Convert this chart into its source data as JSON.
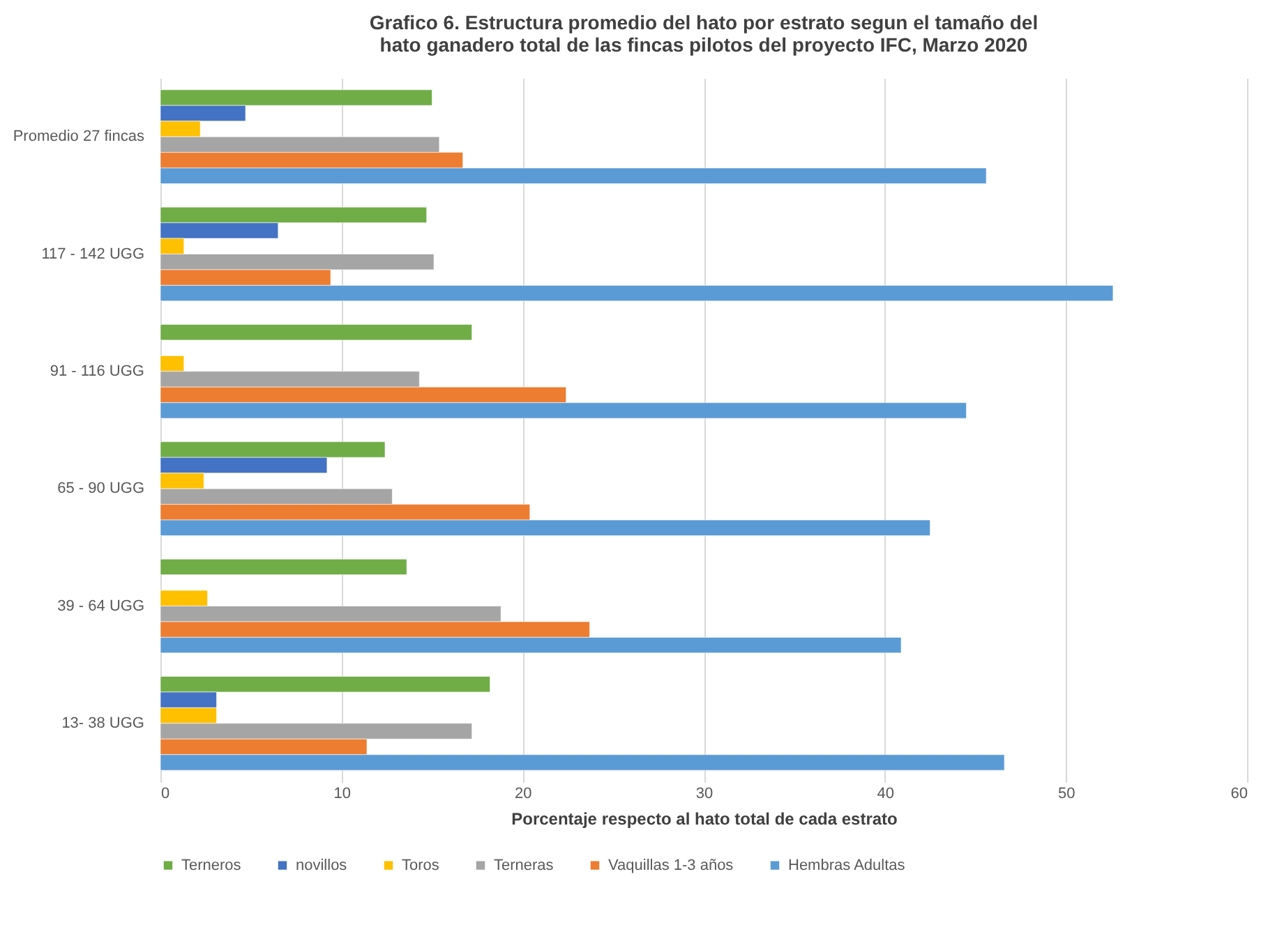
{
  "chart_data": {
    "type": "bar",
    "orientation": "horizontal",
    "title": "Grafico 6. Estructura promedio del hato por estrato segun el tamaño del hato ganadero total de las fincas pilotos del proyecto IFC, Marzo 2020",
    "xlabel": "Porcentaje respecto al hato total de cada estrato",
    "categories": [
      "Promedio 27 fincas",
      "117 - 142 UGG",
      "91 - 116 UGG",
      "65 - 90 UGG",
      "39 - 64 UGG",
      "13- 38 UGG"
    ],
    "series": [
      {
        "name": "Terneros",
        "color": "#70ad47",
        "values": [
          15.0,
          14.7,
          17.2,
          12.4,
          13.6,
          18.2
        ]
      },
      {
        "name": "novillos",
        "color": "#4472c4",
        "values": [
          4.7,
          6.5,
          null,
          9.2,
          null,
          3.1
        ]
      },
      {
        "name": "Toros",
        "color": "#ffc000",
        "values": [
          2.2,
          1.3,
          1.3,
          2.4,
          2.6,
          3.1
        ]
      },
      {
        "name": "Terneras",
        "color": "#a5a5a5",
        "values": [
          15.4,
          15.1,
          14.3,
          12.8,
          18.8,
          17.2
        ]
      },
      {
        "name": "Vaquillas 1-3 años",
        "color": "#ed7d31",
        "values": [
          16.7,
          9.4,
          22.4,
          20.4,
          23.7,
          11.4
        ]
      },
      {
        "name": "Hembras Adultas",
        "color": "#5b9bd5",
        "values": [
          45.6,
          52.6,
          44.5,
          42.5,
          40.9,
          46.6
        ]
      }
    ],
    "xlim": [
      0,
      60
    ],
    "xticks": [
      0,
      10,
      20,
      30,
      40,
      50,
      60
    ],
    "grid": "x",
    "legend": "bottom"
  }
}
